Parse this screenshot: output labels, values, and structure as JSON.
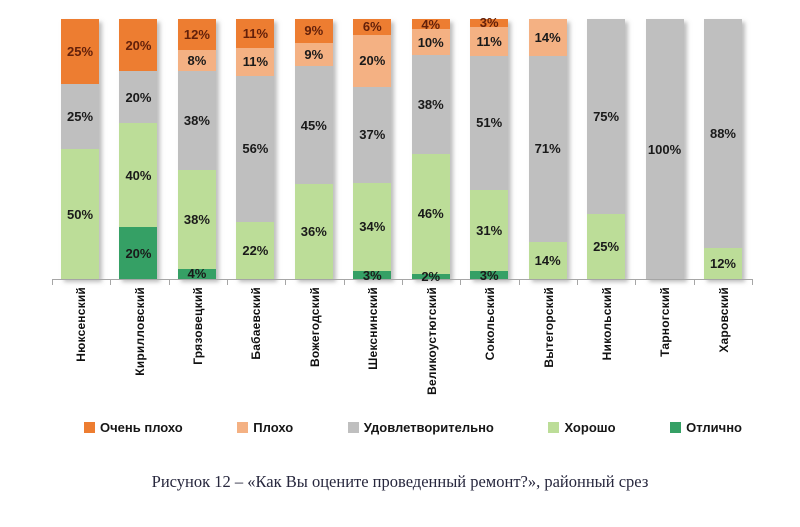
{
  "caption": "Рисунок 12 – «Как Вы оцените проведенный ремонт?», районный срез",
  "colors": {
    "very_bad": "#ED7D31",
    "bad": "#F4B183",
    "satisfactory": "#BFBFBF",
    "good": "#BCDD98",
    "excellent": "#35A065",
    "label_on_very_bad": "#63200a",
    "label_default": "#1a1a1a",
    "axis": "#a6a6a6"
  },
  "legend": [
    {
      "key": "very_bad",
      "label": "Очень плохо"
    },
    {
      "key": "bad",
      "label": "Плохо"
    },
    {
      "key": "satisfactory",
      "label": "Удовлетворительно"
    },
    {
      "key": "good",
      "label": "Хорошо"
    },
    {
      "key": "excellent",
      "label": "Отлично"
    }
  ],
  "chart_data": {
    "type": "bar",
    "subtype": "stacked-100-percent-column",
    "unit": "%",
    "title": "",
    "xlabel": "",
    "ylabel": "",
    "ylim": [
      0,
      100
    ],
    "grid": false,
    "legend_position": "bottom",
    "categories": [
      "Нюксенский",
      "Кирилловский",
      "Грязовецкий",
      "Бабаевский",
      "Вожегодский",
      "Шекснинский",
      "Великоустюгский",
      "Сокольский",
      "Вытегорский",
      "Никольский",
      "Тарногский",
      "Харовский"
    ],
    "series": [
      {
        "name": "Очень плохо",
        "key": "very_bad",
        "values": [
          25,
          20,
          12,
          11,
          9,
          6,
          4,
          3,
          0,
          0,
          0,
          0
        ]
      },
      {
        "name": "Плохо",
        "key": "bad",
        "values": [
          0,
          0,
          8,
          11,
          9,
          20,
          10,
          11,
          14,
          0,
          0,
          0
        ]
      },
      {
        "name": "Удовлетворительно",
        "key": "satisfactory",
        "values": [
          25,
          20,
          38,
          56,
          45,
          37,
          38,
          51,
          71,
          75,
          100,
          88
        ]
      },
      {
        "name": "Хорошо",
        "key": "good",
        "values": [
          50,
          40,
          38,
          22,
          36,
          34,
          46,
          31,
          14,
          25,
          0,
          12
        ]
      },
      {
        "name": "Отлично",
        "key": "excellent",
        "values": [
          0,
          20,
          4,
          0,
          0,
          3,
          2,
          3,
          0,
          0,
          0,
          0
        ]
      }
    ],
    "data_label_format": "{value}%"
  }
}
